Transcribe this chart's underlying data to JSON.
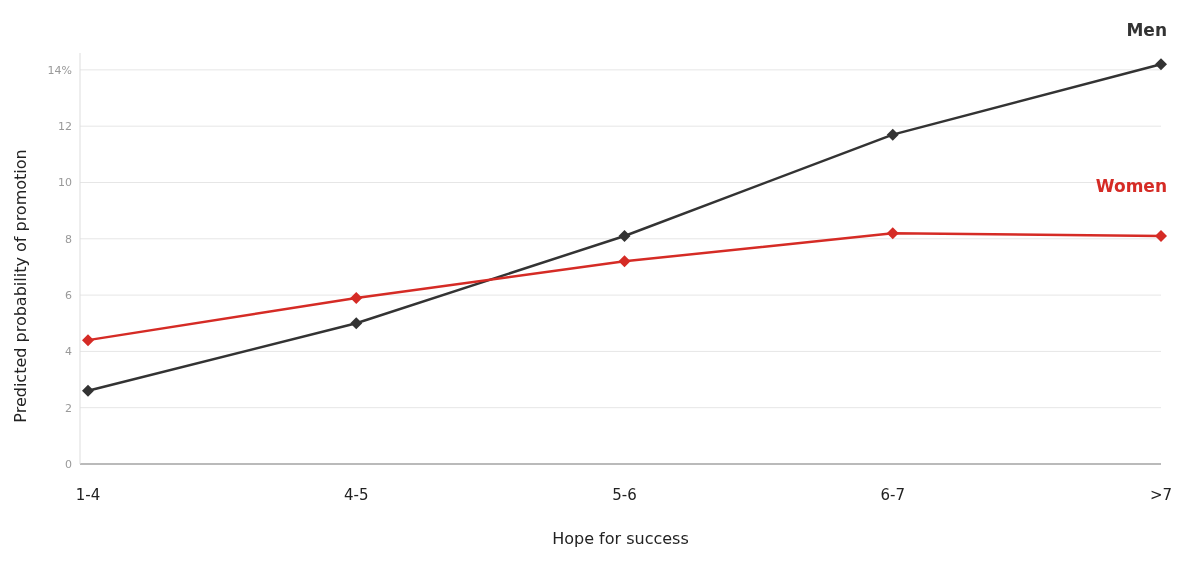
{
  "chart_data": {
    "type": "line",
    "xlabel": "Hope for success",
    "ylabel": "Predicted probability of promotion",
    "categories": [
      "1-4",
      "4-5",
      "5-6",
      "6-7",
      ">7"
    ],
    "ylim": [
      0,
      14.6
    ],
    "yticks": [
      0,
      2,
      4,
      6,
      8,
      10,
      12,
      {
        "value": 14,
        "label": "14%"
      }
    ],
    "series": [
      {
        "name": "Men",
        "color": "#333333",
        "values": [
          2.6,
          5.0,
          8.1,
          11.7,
          14.2
        ]
      },
      {
        "name": "Women",
        "color": "#d52b25",
        "values": [
          4.4,
          5.9,
          7.2,
          8.2,
          8.1
        ]
      }
    ],
    "grid": "y",
    "legend": false,
    "marker": "diamond",
    "line_style": "solid"
  }
}
